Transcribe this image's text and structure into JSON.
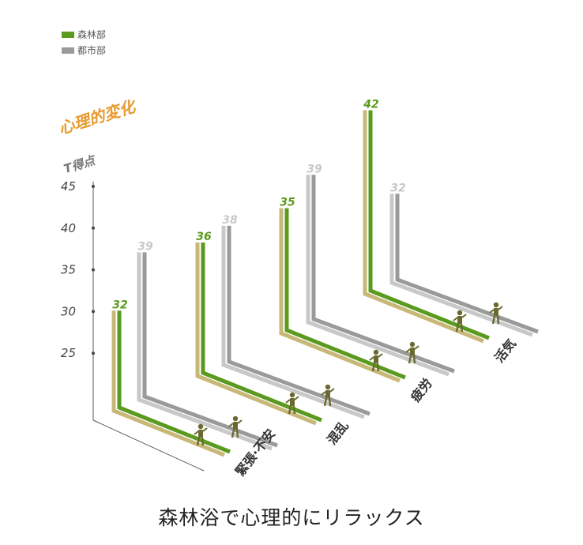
{
  "colors": {
    "forest_dark": "#5a9a1e",
    "forest_light": "#c8b878",
    "city_dark": "#9a9a9a",
    "city_light": "#c8c8c8",
    "person": "#6a6a30",
    "title": "#e89a2f",
    "axis": "#555555"
  },
  "legend": {
    "forest": "森林部",
    "city": "都市部"
  },
  "title": "心理的変化",
  "subtitle": "T得点",
  "caption": "森林浴で心理的にリラックス",
  "chart_data": {
    "type": "bar",
    "title": "心理的変化",
    "ylabel": "T得点",
    "ylim": [
      20,
      45
    ],
    "yticks": [
      "25",
      "30",
      "35",
      "40",
      "45"
    ],
    "categories": [
      "緊張·不安",
      "混乱",
      "疲労",
      "活気"
    ],
    "series": [
      {
        "name": "森林部",
        "values": [
          32,
          36,
          35,
          42
        ],
        "labels": [
          "32",
          "36",
          "35",
          "42"
        ]
      },
      {
        "name": "都市部",
        "values": [
          39,
          38,
          39,
          32
        ],
        "labels": [
          "39",
          "38",
          "39",
          "32"
        ]
      }
    ],
    "legend": "top-left"
  }
}
